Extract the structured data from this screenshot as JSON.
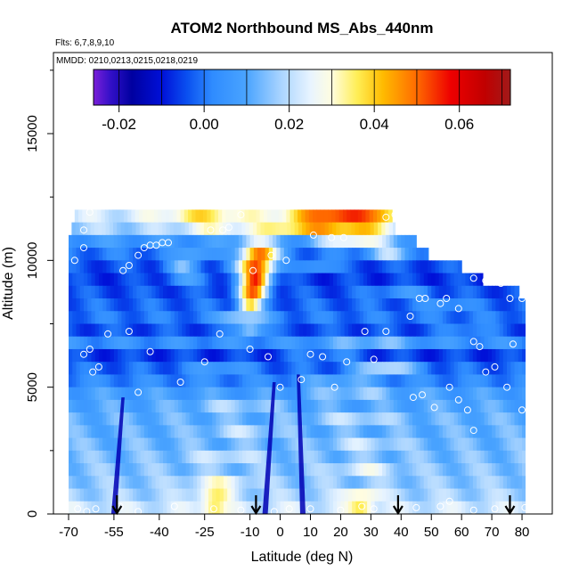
{
  "chart_data": {
    "type": "heatmap",
    "title": "ATOM2 Northbound MS_Abs_440nm",
    "flights_note": "Flts: 6,7,8,9,10",
    "dates_note": "MMDD: 0210,0213,0215,0218,0219",
    "xlabel": "Latitude (deg N)",
    "ylabel": "Altitude (m)",
    "xlim": [
      -70,
      85
    ],
    "ylim": [
      0,
      18000
    ],
    "x_ticks": [
      -70,
      -55,
      -40,
      -25,
      -10,
      0,
      10,
      20,
      30,
      40,
      50,
      60,
      70,
      80
    ],
    "y_ticks": [
      0,
      5000,
      10000,
      15000
    ],
    "colorbar": {
      "min": -0.026,
      "max": 0.072,
      "ticks": [
        -0.02,
        0.0,
        0.02,
        0.04,
        0.06
      ],
      "tick_labels": [
        "-0.02",
        "0.00",
        "0.02",
        "0.04",
        "0.06"
      ],
      "stops": [
        {
          "v": -0.026,
          "c": "#7a1fd8"
        },
        {
          "v": -0.022,
          "c": "#3310c8"
        },
        {
          "v": -0.017,
          "c": "#0000a0"
        },
        {
          "v": -0.01,
          "c": "#0010d8"
        },
        {
          "v": -0.004,
          "c": "#0a50f0"
        },
        {
          "v": 0.002,
          "c": "#2f8cff"
        },
        {
          "v": 0.01,
          "c": "#4aa4ff"
        },
        {
          "v": 0.018,
          "c": "#a9d4ff"
        },
        {
          "v": 0.025,
          "c": "#e8f4ff"
        },
        {
          "v": 0.03,
          "c": "#fffde0"
        },
        {
          "v": 0.036,
          "c": "#ffee55"
        },
        {
          "v": 0.042,
          "c": "#ffbb00"
        },
        {
          "v": 0.05,
          "c": "#ff6a00"
        },
        {
          "v": 0.058,
          "c": "#ee0000"
        },
        {
          "v": 0.066,
          "c": "#c00000"
        },
        {
          "v": 0.072,
          "c": "#a11a1a"
        }
      ]
    },
    "layers": [
      {
        "alt": 11750,
        "x0": -68,
        "x1": 37,
        "base": 0.022,
        "hot": [
          {
            "c": -25,
            "w": 15,
            "a": 0.014
          },
          {
            "c": 8,
            "w": 12,
            "a": 0.012
          },
          {
            "c": 22,
            "w": 12,
            "a": 0.03
          },
          {
            "c": 35,
            "w": 6,
            "a": 0.012
          }
        ]
      },
      {
        "alt": 11250,
        "x0": -69,
        "x1": 38,
        "base": 0.018,
        "hot": [
          {
            "c": -22,
            "w": 12,
            "a": 0.01
          },
          {
            "c": 5,
            "w": 14,
            "a": 0.018
          },
          {
            "c": 24,
            "w": 14,
            "a": 0.022
          }
        ]
      },
      {
        "alt": 10750,
        "x0": -70,
        "x1": 45,
        "base": 0.006,
        "hot": [
          {
            "c": 25,
            "w": 12,
            "a": 0.024
          },
          {
            "c": -8,
            "w": 6,
            "a": 0.02
          }
        ]
      },
      {
        "alt": 10250,
        "x0": -70,
        "x1": 49,
        "base": 0.0,
        "hot": [
          {
            "c": -7,
            "w": 6,
            "a": 0.052
          },
          {
            "c": -28,
            "w": 6,
            "a": 0.012
          },
          {
            "c": 36,
            "w": 8,
            "a": 0.018
          }
        ]
      },
      {
        "alt": 9750,
        "x0": -70,
        "x1": 60,
        "base": -0.004,
        "hot": [
          {
            "c": -8,
            "w": 6,
            "a": 0.06
          },
          {
            "c": -32,
            "w": 6,
            "a": 0.016
          },
          {
            "c": 12,
            "w": 6,
            "a": 0.012
          }
        ]
      },
      {
        "alt": 9250,
        "x0": -70,
        "x1": 67,
        "base": -0.006,
        "hot": [
          {
            "c": -8,
            "w": 5,
            "a": 0.062
          },
          {
            "c": -30,
            "w": 8,
            "a": 0.012
          }
        ]
      },
      {
        "alt": 8750,
        "x0": -70,
        "x1": 79,
        "base": -0.004,
        "hot": [
          {
            "c": -9,
            "w": 5,
            "a": 0.052
          },
          {
            "c": 40,
            "w": 10,
            "a": 0.01
          }
        ]
      },
      {
        "alt": 8250,
        "x0": -70,
        "x1": 81,
        "base": -0.002,
        "hot": [
          {
            "c": -10,
            "w": 4,
            "a": 0.038
          },
          {
            "c": 55,
            "w": 8,
            "a": 0.008
          }
        ]
      },
      {
        "alt": 7750,
        "x0": -70,
        "x1": 81,
        "base": 0.0,
        "hot": [
          {
            "c": -12,
            "w": 8,
            "a": 0.02
          }
        ]
      },
      {
        "alt": 7250,
        "x0": -70,
        "x1": 81,
        "base": -0.004,
        "hot": [
          {
            "c": -10,
            "w": 5,
            "a": 0.022
          },
          {
            "c": 62,
            "w": 8,
            "a": 0.008
          }
        ]
      },
      {
        "alt": 6750,
        "x0": -70,
        "x1": 81,
        "base": 0.004,
        "hot": [
          {
            "c": 30,
            "w": 15,
            "a": 0.01
          }
        ]
      },
      {
        "alt": 6250,
        "x0": -70,
        "x1": 81,
        "base": -0.006,
        "hot": [
          {
            "c": 15,
            "w": 12,
            "a": 0.008
          }
        ]
      },
      {
        "alt": 5750,
        "x0": -70,
        "x1": 81,
        "base": -0.002,
        "hot": [
          {
            "c": 35,
            "w": 10,
            "a": 0.024
          },
          {
            "c": -20,
            "w": 10,
            "a": 0.01
          }
        ]
      },
      {
        "alt": 5250,
        "x0": -70,
        "x1": 81,
        "base": 0.002,
        "hot": [
          {
            "c": 20,
            "w": 12,
            "a": 0.01
          }
        ]
      },
      {
        "alt": 4750,
        "x0": -70,
        "x1": 81,
        "base": 0.008,
        "hot": [
          {
            "c": 25,
            "w": 14,
            "a": 0.008
          }
        ]
      },
      {
        "alt": 4250,
        "x0": -70,
        "x1": 81,
        "base": 0.01,
        "hot": [
          {
            "c": -15,
            "w": 14,
            "a": 0.008
          }
        ]
      },
      {
        "alt": 3750,
        "x0": -70,
        "x1": 81,
        "base": 0.012,
        "hot": [
          {
            "c": 25,
            "w": 14,
            "a": 0.008
          }
        ]
      },
      {
        "alt": 3250,
        "x0": -70,
        "x1": 81,
        "base": 0.012,
        "hot": [
          {
            "c": -12,
            "w": 12,
            "a": 0.008
          }
        ]
      },
      {
        "alt": 2750,
        "x0": -70,
        "x1": 81,
        "base": 0.013,
        "hot": [
          {
            "c": 28,
            "w": 12,
            "a": 0.008
          }
        ]
      },
      {
        "alt": 2250,
        "x0": -70,
        "x1": 81,
        "base": 0.014,
        "hot": [
          {
            "c": -18,
            "w": 12,
            "a": 0.008
          }
        ]
      },
      {
        "alt": 1750,
        "x0": -70,
        "x1": 81,
        "base": 0.015,
        "hot": [
          {
            "c": 28,
            "w": 10,
            "a": 0.01
          }
        ]
      },
      {
        "alt": 1250,
        "x0": -70,
        "x1": 81,
        "base": 0.016,
        "hot": [
          {
            "c": -20,
            "w": 10,
            "a": 0.012
          }
        ]
      },
      {
        "alt": 750,
        "x0": -70,
        "x1": 81,
        "base": 0.018,
        "hot": [
          {
            "c": -22,
            "w": 6,
            "a": 0.016
          },
          {
            "c": 27,
            "w": 6,
            "a": 0.016
          }
        ]
      },
      {
        "alt": 250,
        "x0": -70,
        "x1": 81,
        "base": 0.022,
        "hot": [
          {
            "c": -22,
            "w": 4,
            "a": 0.016
          },
          {
            "c": 27,
            "w": 4,
            "a": 0.016
          }
        ]
      }
    ],
    "dark_streaks": [
      {
        "lat0": 7.5,
        "lat1": 6.0,
        "alt0": 0,
        "alt1": 5500
      },
      {
        "lat0": -5.0,
        "lat1": -2.0,
        "alt0": 0,
        "alt1": 5200
      },
      {
        "lat0": -55.0,
        "lat1": -52.0,
        "alt0": 0,
        "alt1": 4600
      }
    ],
    "points": [
      [
        -68,
        10000
      ],
      [
        -65,
        10500
      ],
      [
        -65,
        11200
      ],
      [
        -63,
        11900
      ],
      [
        -52,
        9600
      ],
      [
        -50,
        9800
      ],
      [
        -47,
        10200
      ],
      [
        -45,
        10500
      ],
      [
        -43,
        10600
      ],
      [
        -41,
        10600
      ],
      [
        -39,
        10700
      ],
      [
        -37,
        10700
      ],
      [
        -23,
        11200
      ],
      [
        -19,
        11200
      ],
      [
        -17,
        11300
      ],
      [
        -13,
        11800
      ],
      [
        -9,
        9600
      ],
      [
        -3,
        10200
      ],
      [
        2,
        10000
      ],
      [
        11,
        11000
      ],
      [
        17,
        10900
      ],
      [
        21,
        10900
      ],
      [
        35,
        11700
      ],
      [
        38,
        11800
      ],
      [
        -65,
        6300
      ],
      [
        -63,
        6500
      ],
      [
        -62,
        5600
      ],
      [
        -60,
        5800
      ],
      [
        -57,
        7100
      ],
      [
        -50,
        7200
      ],
      [
        -43,
        6400
      ],
      [
        -47,
        4800
      ],
      [
        -33,
        5200
      ],
      [
        -25,
        6000
      ],
      [
        -20,
        7100
      ],
      [
        -10,
        6500
      ],
      [
        -4,
        6200
      ],
      [
        0,
        5000
      ],
      [
        7,
        5300
      ],
      [
        10,
        6300
      ],
      [
        14,
        6200
      ],
      [
        18,
        5000
      ],
      [
        22,
        6000
      ],
      [
        28,
        7200
      ],
      [
        31,
        6100
      ],
      [
        35,
        7200
      ],
      [
        43,
        7800
      ],
      [
        46,
        8500
      ],
      [
        48,
        8500
      ],
      [
        53,
        8300
      ],
      [
        55,
        8500
      ],
      [
        59,
        8100
      ],
      [
        64,
        9300
      ],
      [
        68,
        9200
      ],
      [
        73,
        9100
      ],
      [
        76,
        8500
      ],
      [
        80,
        8500
      ],
      [
        64,
        6800
      ],
      [
        66,
        6600
      ],
      [
        68,
        5600
      ],
      [
        71,
        5800
      ],
      [
        75,
        5000
      ],
      [
        77,
        6700
      ],
      [
        80,
        4100
      ],
      [
        44,
        4600
      ],
      [
        47,
        4700
      ],
      [
        51,
        4200
      ],
      [
        56,
        5000
      ],
      [
        59,
        4500
      ],
      [
        62,
        4100
      ],
      [
        64,
        3300
      ],
      [
        -67,
        200
      ],
      [
        -64,
        100
      ],
      [
        -61,
        200
      ],
      [
        -53,
        300
      ],
      [
        -47,
        100
      ],
      [
        -35,
        300
      ],
      [
        -22,
        200
      ],
      [
        -13,
        150
      ],
      [
        -2,
        100
      ],
      [
        3,
        200
      ],
      [
        10,
        200
      ],
      [
        20,
        150
      ],
      [
        27,
        300
      ],
      [
        31,
        200
      ],
      [
        45,
        250
      ],
      [
        53,
        300
      ],
      [
        56,
        500
      ],
      [
        64,
        150
      ],
      [
        71,
        200
      ],
      [
        76,
        150
      ],
      [
        81,
        250
      ]
    ],
    "arrow_latitudes": [
      -54,
      -8,
      39,
      76
    ]
  }
}
